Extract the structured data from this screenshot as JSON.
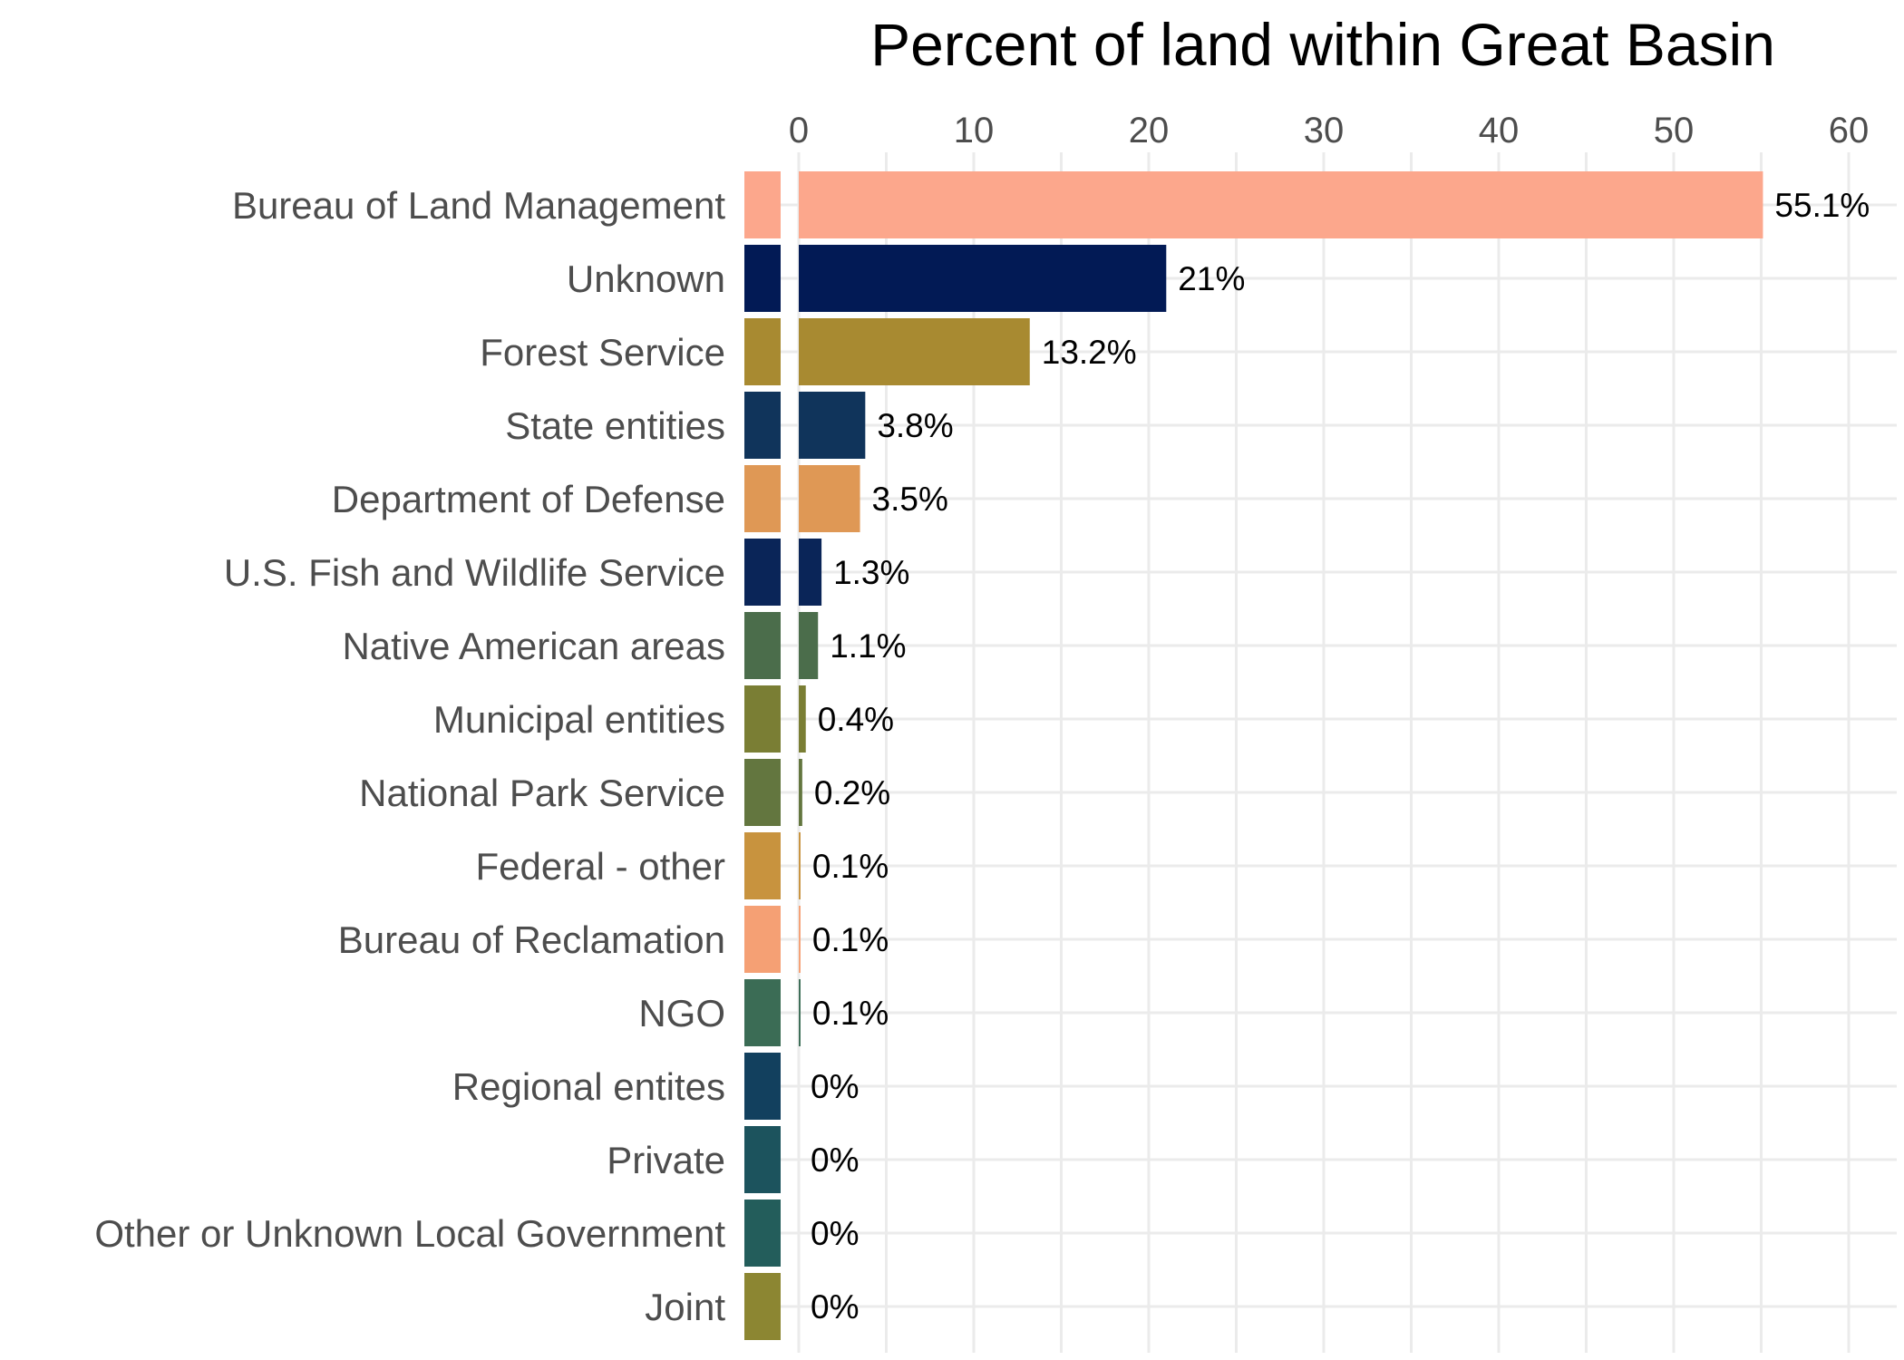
{
  "chart_data": {
    "type": "bar",
    "orientation": "horizontal",
    "title": "Percent of land within Great Basin",
    "xlabel": "",
    "ylabel": "",
    "xlim": [
      -3,
      63
    ],
    "x_ticks": [
      0,
      10,
      20,
      30,
      40,
      50,
      60
    ],
    "x_axis_position": "top",
    "grid": true,
    "legend": "none",
    "categories": [
      "Bureau of Land Management",
      "Unknown",
      "Forest Service",
      "State entities",
      "Department of Defense",
      "U.S. Fish and Wildlife Service",
      "Native American areas",
      "Municipal entities",
      "National Park Service",
      "Federal - other",
      "Bureau of Reclamation",
      "NGO",
      "Regional entites",
      "Private",
      "Other or Unknown Local Government",
      "Joint"
    ],
    "values": [
      55.1,
      21,
      13.2,
      3.8,
      3.5,
      1.3,
      1.1,
      0.4,
      0.2,
      0.1,
      0.1,
      0.1,
      0,
      0,
      0,
      0
    ],
    "value_labels": [
      "55.1%",
      "21%",
      "13.2%",
      "3.8%",
      "3.5%",
      "1.3%",
      "1.1%",
      "0.4%",
      "0.2%",
      "0.1%",
      "0.1%",
      "0.1%",
      "0%",
      "0%",
      "0%",
      "0%"
    ],
    "colors": [
      "#fca78c",
      "#021a55",
      "#a88a31",
      "#10345b",
      "#df9855",
      "#0a2558",
      "#4b6d4b",
      "#7a7e34",
      "#63763f",
      "#c8933e",
      "#f5a074",
      "#3b6c55",
      "#12405e",
      "#1c535d",
      "#235d5b",
      "#8c8632"
    ]
  }
}
